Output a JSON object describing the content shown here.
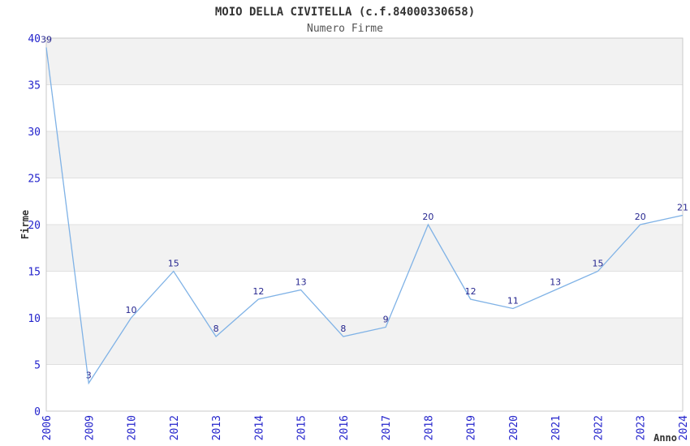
{
  "chart_data": {
    "type": "line",
    "title": "MOIO DELLA CIVITELLA (c.f.84000330658)",
    "subtitle": "Numero Firme",
    "xlabel": "Anno",
    "ylabel": "Firme",
    "categories": [
      "2006",
      "2009",
      "2010",
      "2012",
      "2013",
      "2014",
      "2015",
      "2016",
      "2017",
      "2018",
      "2019",
      "2020",
      "2021",
      "2022",
      "2023",
      "2024"
    ],
    "values": [
      39,
      3,
      10,
      15,
      8,
      12,
      13,
      8,
      9,
      20,
      12,
      11,
      13,
      15,
      20,
      21
    ],
    "ylim": [
      0,
      40
    ],
    "ytick_step": 5,
    "yticks": [
      0,
      5,
      10,
      15,
      20,
      25,
      30,
      35,
      40
    ],
    "grid": "horizontal",
    "legend": "none",
    "bands": "alternating-horizontal",
    "colors": {
      "line": "#7fb2e6",
      "data_label": "#26268f",
      "tick_label": "#2424cc",
      "axis_title": "#333333",
      "title": "#333333",
      "subtitle": "#555555",
      "band": "#f2f2f2",
      "gridline": "#e0e0e0",
      "border": "#c9c9c9",
      "background": "#ffffff"
    }
  }
}
